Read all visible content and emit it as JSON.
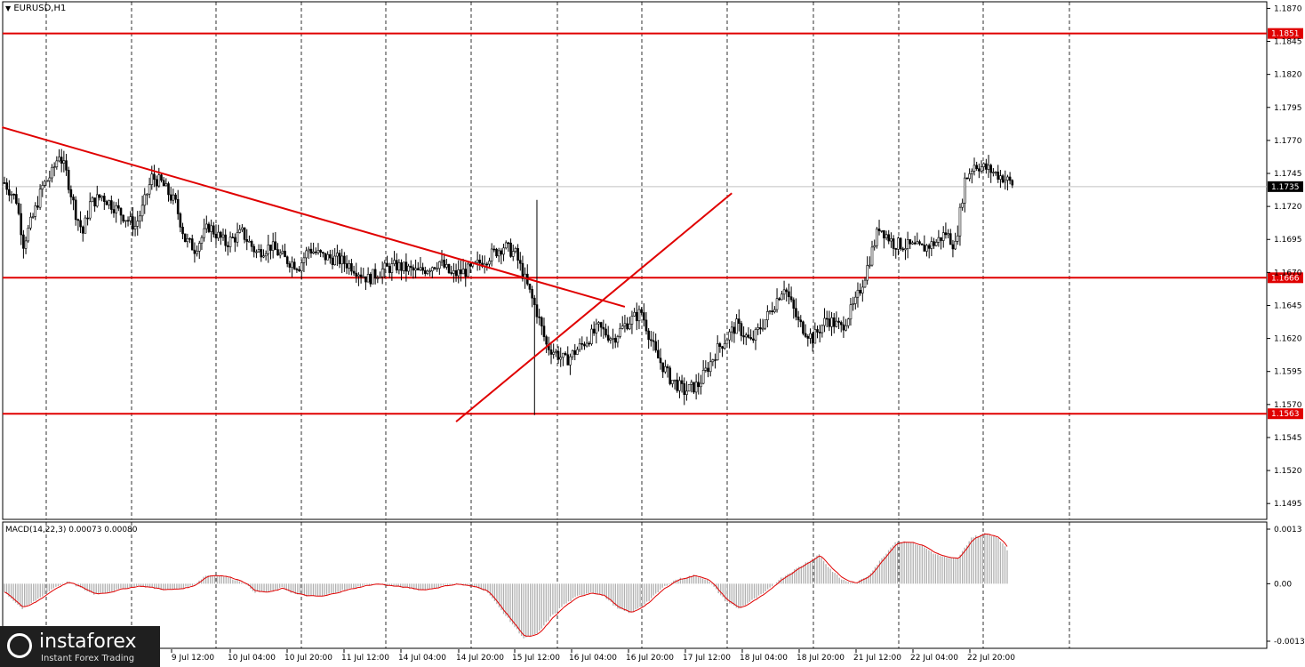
{
  "header": {
    "symbol_label": "EURUSD,H1",
    "dropdown_glyph": "▼"
  },
  "macd_header": {
    "label": "MACD(14,22,3) 0.00073 0.00080"
  },
  "watermark": {
    "brand": "instaforex",
    "tagline": "Instant Forex Trading"
  },
  "colors": {
    "line_red": "#e00000",
    "candle": "#000000",
    "grid": "#000000",
    "hist": "#b0b0b0",
    "signal": "#e00000"
  },
  "chart_data": [
    {
      "type": "candlestick",
      "title": "EURUSD,H1",
      "xlabel": "",
      "ylabel": "",
      "ylim": [
        1.1483,
        1.1875
      ],
      "grid": true,
      "price_ticks": [
        "1.1870",
        "1.1845",
        "1.1820",
        "1.1795",
        "1.1770",
        "1.1745",
        "1.1720",
        "1.1695",
        "1.1670",
        "1.1645",
        "1.1620",
        "1.1595",
        "1.1570",
        "1.1545",
        "1.1520",
        "1.1495"
      ],
      "time_ticks": [
        "9 Jul 12:00",
        "10 Jul 04:00",
        "10 Jul 20:00",
        "11 Jul 12:00",
        "14 Jul 04:00",
        "14 Jul 20:00",
        "15 Jul 12:00",
        "16 Jul 04:00",
        "16 Jul 20:00",
        "17 Jul 12:00",
        "18 Jul 04:00",
        "18 Jul 20:00",
        "21 Jul 12:00",
        "22 Jul 04:00",
        "22 Jul 20:00"
      ],
      "horizontal_levels": [
        {
          "value": 1.1851,
          "label": "1.1851"
        },
        {
          "value": 1.1666,
          "label": "1.1666"
        },
        {
          "value": 1.1563,
          "label": "1.1563"
        }
      ],
      "current_price": {
        "value": 1.1735,
        "label": "1.1735"
      },
      "trendlines": [
        {
          "name": "descending",
          "from": {
            "bar": -1,
            "price": 1.178
          },
          "to": {
            "bar": 261,
            "price": 1.1644
          }
        },
        {
          "name": "ascending",
          "from": {
            "bar": 190,
            "price": 1.1557
          },
          "to": {
            "bar": 306,
            "price": 1.173
          }
        }
      ],
      "price_path": [
        [
          0,
          1.1738
        ],
        [
          5,
          1.1725
        ],
        [
          8,
          1.1692
        ],
        [
          12,
          1.1712
        ],
        [
          16,
          1.1735
        ],
        [
          20,
          1.1745
        ],
        [
          23,
          1.176
        ],
        [
          26,
          1.1745
        ],
        [
          30,
          1.1715
        ],
        [
          33,
          1.17
        ],
        [
          36,
          1.1722
        ],
        [
          41,
          1.1728
        ],
        [
          46,
          1.172
        ],
        [
          50,
          1.1713
        ],
        [
          55,
          1.1705
        ],
        [
          58,
          1.1718
        ],
        [
          62,
          1.1742
        ],
        [
          66,
          1.1738
        ],
        [
          72,
          1.1722
        ],
        [
          76,
          1.1695
        ],
        [
          80,
          1.1688
        ],
        [
          86,
          1.1705
        ],
        [
          93,
          1.1692
        ],
        [
          100,
          1.17
        ],
        [
          106,
          1.1685
        ],
        [
          112,
          1.169
        ],
        [
          118,
          1.168
        ],
        [
          124,
          1.1675
        ],
        [
          128,
          1.1688
        ],
        [
          134,
          1.1682
        ],
        [
          140,
          1.168
        ],
        [
          146,
          1.1675
        ],
        [
          153,
          1.1665
        ],
        [
          159,
          1.1672
        ],
        [
          165,
          1.1675
        ],
        [
          174,
          1.167
        ],
        [
          183,
          1.1678
        ],
        [
          188,
          1.1668
        ],
        [
          196,
          1.1672
        ],
        [
          202,
          1.168
        ],
        [
          210,
          1.169
        ],
        [
          215,
          1.1684
        ],
        [
          224,
          1.164
        ],
        [
          228,
          1.1615
        ],
        [
          236,
          1.1603
        ],
        [
          244,
          1.1617
        ],
        [
          250,
          1.1628
        ],
        [
          256,
          1.162
        ],
        [
          262,
          1.1632
        ],
        [
          268,
          1.164
        ],
        [
          274,
          1.1608
        ],
        [
          280,
          1.159
        ],
        [
          286,
          1.158
        ],
        [
          292,
          1.1585
        ],
        [
          300,
          1.1612
        ],
        [
          308,
          1.163
        ],
        [
          314,
          1.1617
        ],
        [
          322,
          1.164
        ],
        [
          328,
          1.166
        ],
        [
          334,
          1.1632
        ],
        [
          340,
          1.162
        ],
        [
          346,
          1.1635
        ],
        [
          352,
          1.1628
        ],
        [
          358,
          1.1647
        ],
        [
          362,
          1.1668
        ],
        [
          368,
          1.1705
        ],
        [
          374,
          1.1692
        ],
        [
          380,
          1.169
        ],
        [
          386,
          1.1688
        ],
        [
          392,
          1.1693
        ],
        [
          396,
          1.17
        ],
        [
          400,
          1.169
        ],
        [
          404,
          1.174
        ],
        [
          408,
          1.1752
        ],
        [
          414,
          1.1748
        ],
        [
          420,
          1.1742
        ],
        [
          424,
          1.1737
        ]
      ],
      "anomalies": [
        {
          "bar": 223,
          "low": 1.1562
        },
        {
          "bar": 224,
          "high": 1.1725
        }
      ]
    },
    {
      "type": "bar",
      "title": "MACD(14,22,3) 0.00073 0.00080",
      "xlabel": "",
      "ylabel": "",
      "ylim": [
        -0.00137,
        0.0013
      ],
      "price_ticks": [
        "0.0013",
        "0.00",
        "-0.00137"
      ],
      "series": [
        {
          "name": "MACD",
          "kind": "histogram"
        },
        {
          "name": "Signal",
          "kind": "line"
        }
      ],
      "histogram_path": [
        [
          0,
          -0.0002
        ],
        [
          4,
          -0.0004
        ],
        [
          8,
          -0.0006
        ],
        [
          14,
          -0.0004
        ],
        [
          22,
          -0.0001
        ],
        [
          28,
          5e-05
        ],
        [
          34,
          -0.0001
        ],
        [
          40,
          -0.00025
        ],
        [
          46,
          -0.0002
        ],
        [
          54,
          -0.0001
        ],
        [
          60,
          -5e-05
        ],
        [
          66,
          -0.0001
        ],
        [
          72,
          -0.00015
        ],
        [
          78,
          -0.00012
        ],
        [
          84,
          -5e-05
        ],
        [
          90,
          0.0002
        ],
        [
          96,
          0.0002
        ],
        [
          100,
          0.00015
        ],
        [
          106,
          5e-05
        ],
        [
          112,
          -0.0002
        ],
        [
          118,
          -0.0002
        ],
        [
          124,
          -0.0001
        ],
        [
          130,
          -0.00025
        ],
        [
          136,
          -0.0003
        ],
        [
          142,
          -0.0003
        ],
        [
          148,
          -0.0002
        ],
        [
          156,
          -0.0001
        ],
        [
          160,
          -5e-05
        ],
        [
          166,
          0.0
        ],
        [
          172,
          -5e-05
        ],
        [
          180,
          -0.0001
        ],
        [
          186,
          -0.00015
        ],
        [
          190,
          -0.00012
        ],
        [
          196,
          -5e-05
        ],
        [
          202,
          -0.0
        ],
        [
          206,
          -5e-05
        ],
        [
          212,
          -0.0001
        ],
        [
          216,
          -0.0002
        ],
        [
          220,
          -0.0005
        ],
        [
          226,
          -0.0009
        ],
        [
          232,
          -0.0013
        ],
        [
          238,
          -0.0012
        ],
        [
          244,
          -0.0008
        ],
        [
          250,
          -0.0005
        ],
        [
          256,
          -0.0003
        ],
        [
          262,
          -0.0002
        ],
        [
          268,
          -0.0003
        ],
        [
          274,
          -0.0006
        ],
        [
          280,
          -0.0007
        ],
        [
          288,
          -0.0004
        ],
        [
          294,
          -0.0001
        ],
        [
          300,
          0.0001
        ],
        [
          308,
          0.0002
        ],
        [
          314,
          0.0001
        ],
        [
          322,
          -0.0004
        ],
        [
          328,
          -0.0006
        ],
        [
          334,
          -0.0004
        ],
        [
          340,
          -0.0002
        ],
        [
          346,
          0.0001
        ],
        [
          352,
          0.0003
        ],
        [
          358,
          0.0005
        ],
        [
          364,
          0.0007
        ],
        [
          368,
          0.0004
        ],
        [
          374,
          0.0001
        ],
        [
          380,
          0.0
        ],
        [
          386,
          0.0002
        ],
        [
          392,
          0.0006
        ],
        [
          398,
          0.001
        ],
        [
          404,
          0.001
        ],
        [
          410,
          0.0009
        ],
        [
          416,
          0.0007
        ],
        [
          422,
          0.0006
        ],
        [
          426,
          0.0006
        ],
        [
          432,
          0.0011
        ],
        [
          438,
          0.0012
        ],
        [
          444,
          0.0011
        ],
        [
          448,
          0.0008
        ]
      ]
    }
  ]
}
